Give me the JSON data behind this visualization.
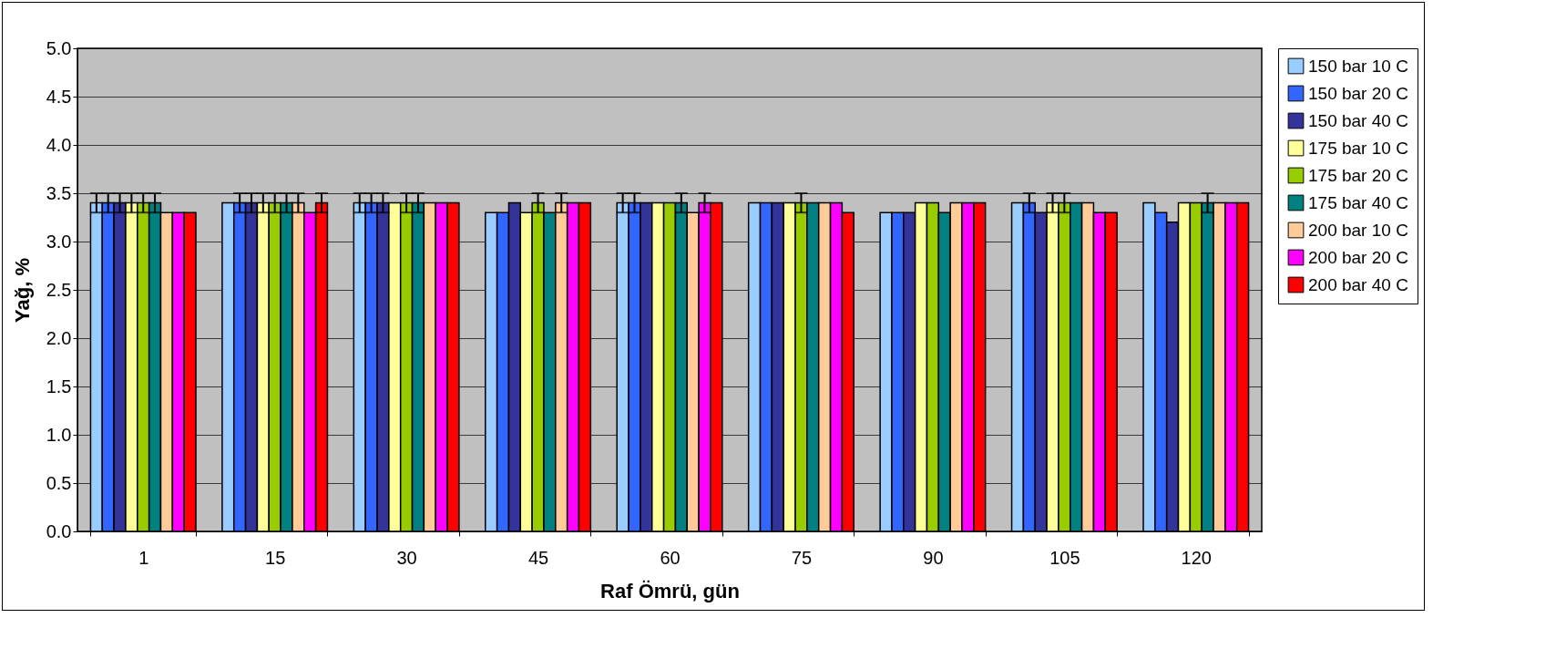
{
  "chart_data": {
    "type": "bar",
    "xlabel": "Raf Ömrü, gün",
    "ylabel": "Yağ, %",
    "categories": [
      "1",
      "15",
      "30",
      "45",
      "60",
      "75",
      "90",
      "105",
      "120"
    ],
    "ylim": [
      0,
      5
    ],
    "yticks": [
      {
        "value": 0,
        "label": "0.0"
      },
      {
        "value": 0.5,
        "label": "0.5"
      },
      {
        "value": 1,
        "label": "1.0"
      },
      {
        "value": 1.5,
        "label": "1.5"
      },
      {
        "value": 2,
        "label": "2.0"
      },
      {
        "value": 2.5,
        "label": "2.5"
      },
      {
        "value": 3,
        "label": "3.0"
      },
      {
        "value": 3.5,
        "label": "3.5"
      },
      {
        "value": 4,
        "label": "4.0"
      },
      {
        "value": 4.5,
        "label": "4.5"
      },
      {
        "value": 5,
        "label": "5.0"
      }
    ],
    "grid": "y",
    "legend": "right",
    "series": [
      {
        "name": "150 bar 10 C",
        "color": "#99ccff",
        "values": [
          3.4,
          3.4,
          3.4,
          3.3,
          3.4,
          3.4,
          3.3,
          3.4,
          3.4
        ],
        "errors": [
          0.1,
          null,
          0.1,
          null,
          0.1,
          null,
          null,
          null,
          null
        ]
      },
      {
        "name": "150 bar 20 C",
        "color": "#3366ff",
        "values": [
          3.4,
          3.4,
          3.4,
          3.3,
          3.4,
          3.4,
          3.3,
          3.4,
          3.3
        ],
        "errors": [
          0.1,
          0.1,
          0.1,
          null,
          0.1,
          null,
          null,
          0.1,
          null
        ]
      },
      {
        "name": "150 bar 40 C",
        "color": "#333399",
        "values": [
          3.4,
          3.4,
          3.4,
          3.4,
          3.4,
          3.4,
          3.3,
          3.3,
          3.2
        ],
        "errors": [
          0.1,
          0.1,
          0.1,
          null,
          null,
          null,
          null,
          null,
          null
        ]
      },
      {
        "name": "175 bar 10 C",
        "color": "#ffff99",
        "values": [
          3.4,
          3.4,
          3.4,
          3.3,
          3.4,
          3.4,
          3.4,
          3.4,
          3.4
        ],
        "errors": [
          0.1,
          0.1,
          null,
          null,
          null,
          null,
          null,
          0.1,
          null
        ]
      },
      {
        "name": "175 bar 20 C",
        "color": "#99cc00",
        "values": [
          3.4,
          3.4,
          3.4,
          3.4,
          3.4,
          3.4,
          3.4,
          3.4,
          3.4
        ],
        "errors": [
          0.1,
          0.1,
          0.1,
          0.1,
          null,
          0.1,
          null,
          0.1,
          null
        ]
      },
      {
        "name": "175 bar 40 C",
        "color": "#008080",
        "values": [
          3.4,
          3.4,
          3.4,
          3.3,
          3.4,
          3.4,
          3.3,
          3.4,
          3.4
        ],
        "errors": [
          0.1,
          0.1,
          0.1,
          null,
          0.1,
          null,
          null,
          null,
          0.1
        ]
      },
      {
        "name": "200 bar 10 C",
        "color": "#ffcc99",
        "values": [
          3.3,
          3.4,
          3.4,
          3.4,
          3.3,
          3.4,
          3.4,
          3.4,
          3.4
        ],
        "errors": [
          null,
          0.1,
          null,
          0.1,
          null,
          null,
          null,
          null,
          null
        ]
      },
      {
        "name": "200 bar 20 C",
        "color": "#ff00ff",
        "values": [
          3.3,
          3.3,
          3.4,
          3.4,
          3.4,
          3.4,
          3.4,
          3.3,
          3.4
        ],
        "errors": [
          null,
          null,
          null,
          null,
          0.1,
          null,
          null,
          null,
          null
        ]
      },
      {
        "name": "200 bar 40 C",
        "color": "#ff0000",
        "values": [
          3.3,
          3.4,
          3.4,
          3.4,
          3.4,
          3.3,
          3.4,
          3.3,
          3.4
        ],
        "errors": [
          null,
          0.1,
          null,
          null,
          null,
          null,
          null,
          null,
          null
        ]
      }
    ]
  }
}
